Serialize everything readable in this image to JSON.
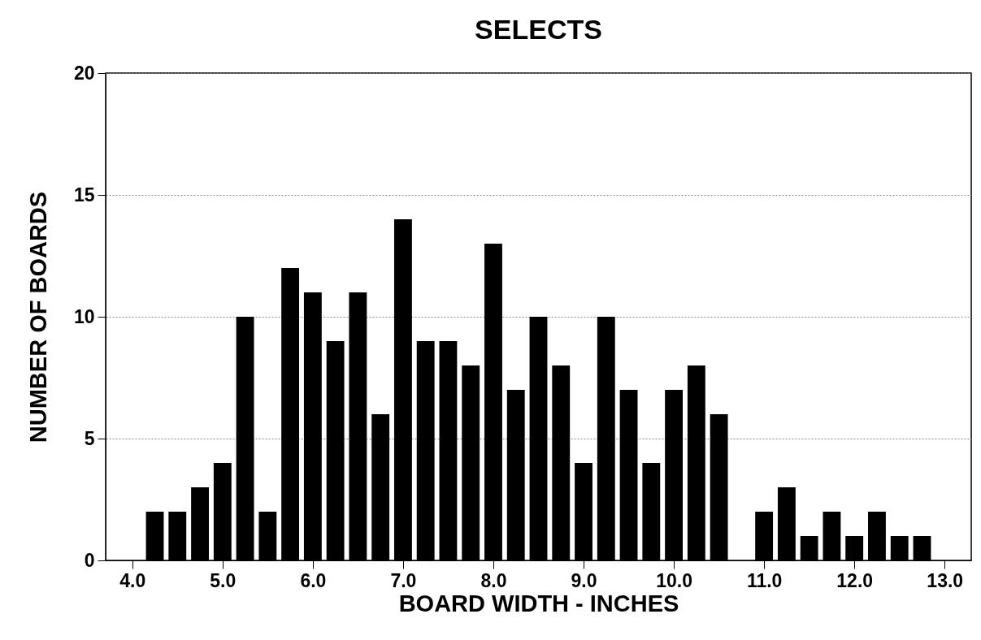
{
  "chart_data": {
    "type": "bar",
    "title": "SELECTS",
    "xlabel": "BOARD WIDTH - INCHES",
    "ylabel": "NUMBER OF BOARDS",
    "x": [
      4.25,
      4.5,
      4.75,
      5.0,
      5.25,
      5.5,
      5.75,
      6.0,
      6.25,
      6.5,
      6.75,
      7.0,
      7.25,
      7.5,
      7.75,
      8.0,
      8.25,
      8.5,
      8.75,
      9.0,
      9.25,
      9.5,
      9.75,
      10.0,
      10.25,
      10.5,
      10.75,
      11.0,
      11.25,
      11.5,
      11.75,
      12.0,
      12.25,
      12.5,
      12.75
    ],
    "values": [
      2,
      2,
      3,
      4,
      10,
      2,
      12,
      11,
      9,
      11,
      6,
      14,
      9,
      9,
      8,
      13,
      7,
      10,
      8,
      4,
      10,
      7,
      4,
      7,
      8,
      6,
      0,
      2,
      3,
      1,
      2,
      1,
      2,
      1,
      1
    ],
    "color": "#000000",
    "xlim": [
      3.75,
      13.25
    ],
    "xticks": [
      {
        "value": 4,
        "label": "4.0"
      },
      {
        "value": 5,
        "label": "5.0"
      },
      {
        "value": 6,
        "label": "6.0"
      },
      {
        "value": 7,
        "label": "7.0"
      },
      {
        "value": 8,
        "label": "8.0"
      },
      {
        "value": 9,
        "label": "9.0"
      },
      {
        "value": 10,
        "label": "10.0"
      },
      {
        "value": 11,
        "label": "11.0"
      },
      {
        "value": 12,
        "label": "12.0"
      },
      {
        "value": 13,
        "label": "13.0"
      }
    ],
    "ylim": [
      0,
      20
    ],
    "yticks": [
      0,
      5,
      10,
      15,
      20
    ],
    "grid": "y"
  }
}
